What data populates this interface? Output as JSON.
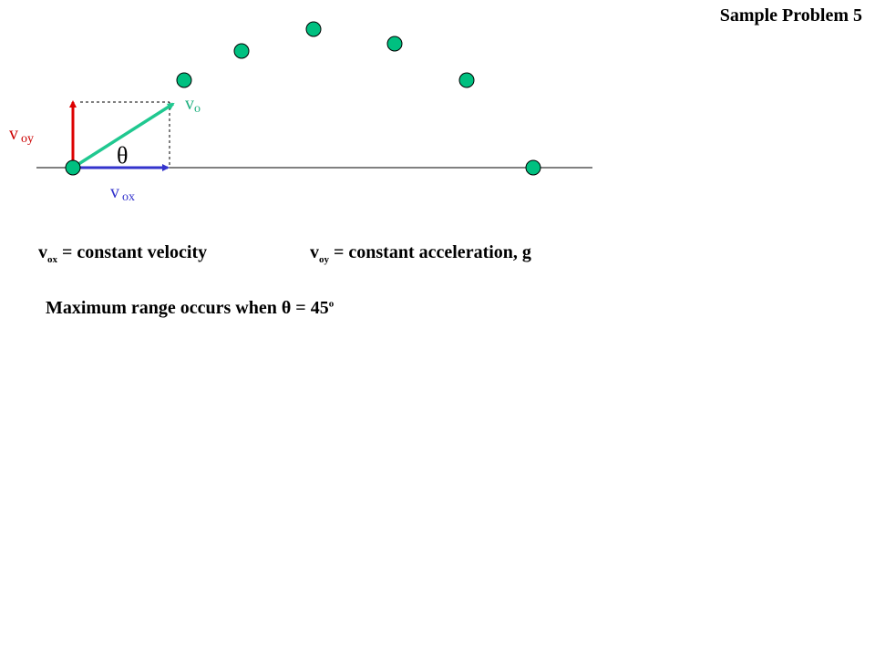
{
  "title": "Sample Problem 5",
  "labels": {
    "vo_main": "v",
    "vo_sub": "o",
    "voy_main": "v",
    "voy_sub": "oy",
    "vox_main": "v",
    "vox_sub": "ox",
    "angle": "θ"
  },
  "statements": {
    "vox": {
      "main": "v",
      "sub": "ox",
      "rest": " = constant velocity"
    },
    "voy": {
      "main": "v",
      "sub": "oy",
      "rest": " = constant acceleration, g"
    },
    "max_range": {
      "text": "Maximum range occurs when θ = 45",
      "sup": "o"
    }
  },
  "colors": {
    "ball": "#00c080",
    "vo_arrow": "#20c890",
    "voy_arrow": "#dd0000",
    "vox_arrow": "#3333cc",
    "vo_label": "#20b080",
    "voy_label": "#cc0000",
    "vox_label": "#3333cc"
  }
}
